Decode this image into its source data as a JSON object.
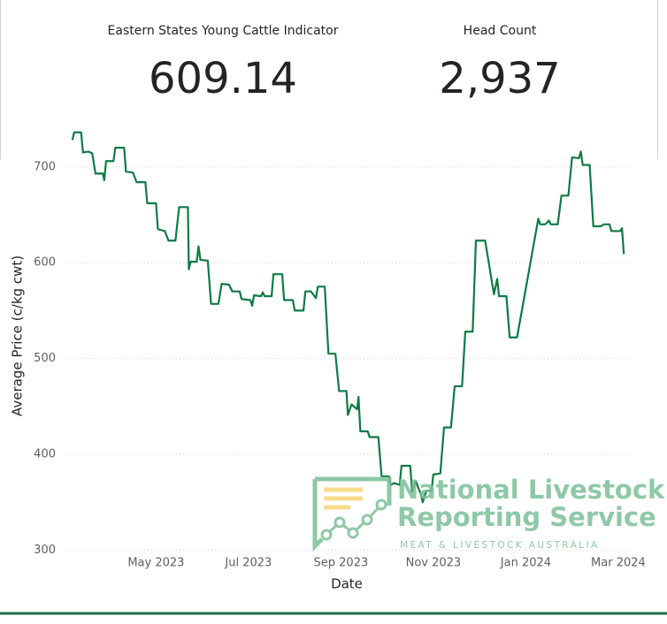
{
  "kpis": [
    {
      "title": "Eastern States Young Cattle Indicator",
      "value": 609.14
    },
    {
      "title": "Head Count",
      "value": "2,937"
    }
  ],
  "watermark": {
    "line1": "National Livestock",
    "line2": "Reporting Service",
    "tagline": "MEAT & LIVESTOCK AUSTRALIA"
  },
  "chart_data": {
    "type": "line",
    "x_label": "Date",
    "y_label": "Average Price (c/kg cwt)",
    "color": "#0f7a45",
    "grid": true,
    "xlim": [
      2.06,
      14.25
    ],
    "xticks": [
      {
        "value": 4,
        "label": "May 2023"
      },
      {
        "value": 6,
        "label": "Jul 2023"
      },
      {
        "value": 8,
        "label": "Sep 2023"
      },
      {
        "value": 10,
        "label": "Nov 2023"
      },
      {
        "value": 12,
        "label": "Jan 2024"
      },
      {
        "value": 14,
        "label": "Mar 2024"
      }
    ],
    "ylim": [
      293,
      745
    ],
    "yticks": [
      300,
      400,
      500,
      600,
      700
    ],
    "x": [
      2.19,
      2.23,
      2.38,
      2.42,
      2.54,
      2.62,
      2.69,
      2.85,
      2.88,
      2.92,
      3.08,
      3.12,
      3.31,
      3.35,
      3.5,
      3.58,
      3.77,
      3.81,
      4,
      4.04,
      4.19,
      4.27,
      4.42,
      4.5,
      4.69,
      4.71,
      4.75,
      4.88,
      4.92,
      4.96,
      5.12,
      5.19,
      5.35,
      5.42,
      5.58,
      5.65,
      5.81,
      5.85,
      6.04,
      6.08,
      6.12,
      6.27,
      6.31,
      6.35,
      6.5,
      6.54,
      6.73,
      6.77,
      6.96,
      7,
      7.19,
      7.23,
      7.35,
      7.46,
      7.5,
      7.65,
      7.73,
      7.88,
      7.96,
      8.12,
      8.15,
      8.23,
      8.35,
      8.38,
      8.42,
      8.58,
      8.62,
      8.81,
      8.88,
      9.04,
      9.08,
      9.15,
      9.27,
      9.31,
      9.5,
      9.54,
      9.62,
      9.73,
      9.77,
      9.85,
      9.96,
      10,
      10.15,
      10.23,
      10.38,
      10.46,
      10.62,
      10.69,
      10.85,
      10.92,
      11.12,
      11.31,
      11.38,
      11.42,
      11.58,
      11.65,
      11.81,
      12.27,
      12.31,
      12.42,
      12.5,
      12.54,
      12.69,
      12.77,
      12.92,
      13,
      13.15,
      13.19,
      13.23,
      13.38,
      13.46,
      13.62,
      13.69,
      13.81,
      13.85,
      14.04,
      14.08,
      14.12
    ],
    "values": [
      728,
      736,
      736,
      715,
      716,
      714,
      693,
      693,
      686,
      706,
      706,
      720,
      720,
      695,
      694,
      684,
      684,
      662,
      662,
      635,
      633,
      623,
      623,
      658,
      658,
      593,
      601,
      601,
      617,
      603,
      602,
      557,
      557,
      578,
      577,
      570,
      570,
      562,
      561,
      555,
      566,
      565,
      569,
      565,
      565,
      588,
      588,
      561,
      561,
      550,
      550,
      570,
      570,
      563,
      575,
      575,
      505,
      505,
      466,
      466,
      441,
      452,
      447,
      460,
      424,
      424,
      418,
      418,
      377,
      377,
      368,
      370,
      368,
      388,
      388,
      361,
      372,
      358,
      350,
      362,
      362,
      379,
      380,
      428,
      428,
      471,
      471,
      528,
      528,
      623,
      623,
      567,
      583,
      565,
      565,
      522,
      522,
      646,
      640,
      640,
      644,
      640,
      640,
      670,
      670,
      710,
      709,
      716,
      702,
      702,
      638,
      638,
      640,
      640,
      633,
      633,
      636,
      609
    ]
  }
}
